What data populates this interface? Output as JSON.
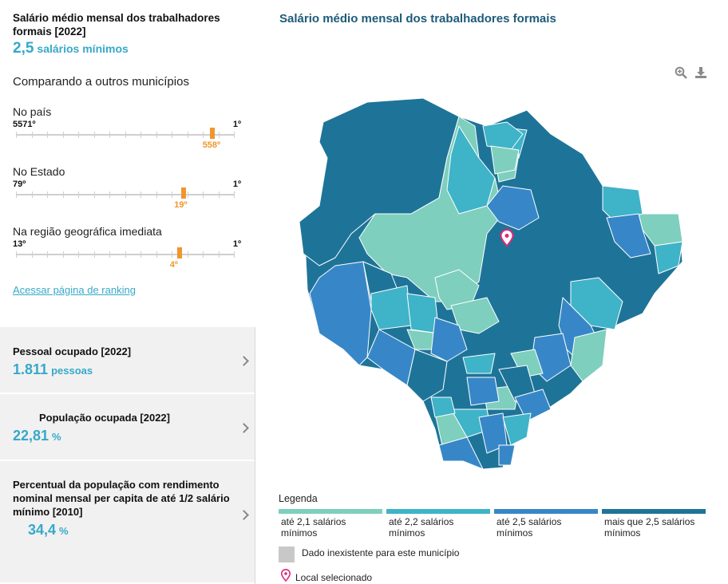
{
  "indicator": {
    "title": "Salário médio mensal dos trabalhadores formais [2022]",
    "value": "2,5",
    "unit": "salários mínimos"
  },
  "comparison": {
    "title": "Comparando a outros municípios",
    "ranks": [
      {
        "label": "No país",
        "left_end": "5571º",
        "right_end": "1º",
        "position": "558º",
        "fraction": 0.9
      },
      {
        "label": "No Estado",
        "left_end": "79º",
        "right_end": "1º",
        "position": "19º",
        "fraction": 0.77
      },
      {
        "label": "Na região geográfica imediata",
        "left_end": "13º",
        "right_end": "1º",
        "position": "4º",
        "fraction": 0.75
      }
    ],
    "link": "Acessar página de ranking"
  },
  "cards": [
    {
      "title": "Pessoal ocupado [2022]",
      "value": "1.811",
      "unit": "pessoas"
    },
    {
      "title": "População ocupada [2022]",
      "value": "22,81",
      "unit": "%"
    },
    {
      "title": "Percentual da população com rendimento nominal mensal per capita de até 1/2 salário mínimo [2010]",
      "value": "34,4",
      "unit": "%"
    }
  ],
  "map": {
    "title": "Salário médio mensal dos trabalhadores formais",
    "tools": [
      "zoom-icon",
      "download-icon"
    ],
    "colors": {
      "c1": "#7ecfbd",
      "c2": "#3fb3c8",
      "c3": "#3787c8",
      "c4": "#1e7498",
      "nodata": "#c8c8c8",
      "pin": "#e0287a"
    }
  },
  "legend": {
    "title": "Legenda",
    "items": [
      {
        "label": "até 2,1 salários mínimos",
        "color": "#7ecfbd"
      },
      {
        "label": "até 2,2 salários mínimos",
        "color": "#3fb3c8"
      },
      {
        "label": "até 2,5 salários mínimos",
        "color": "#3787c8"
      },
      {
        "label": "mais que 2,5 salários mínimos",
        "color": "#1e7498"
      }
    ],
    "nodata": "Dado inexistente para este município",
    "selected": "Local selecionado"
  }
}
